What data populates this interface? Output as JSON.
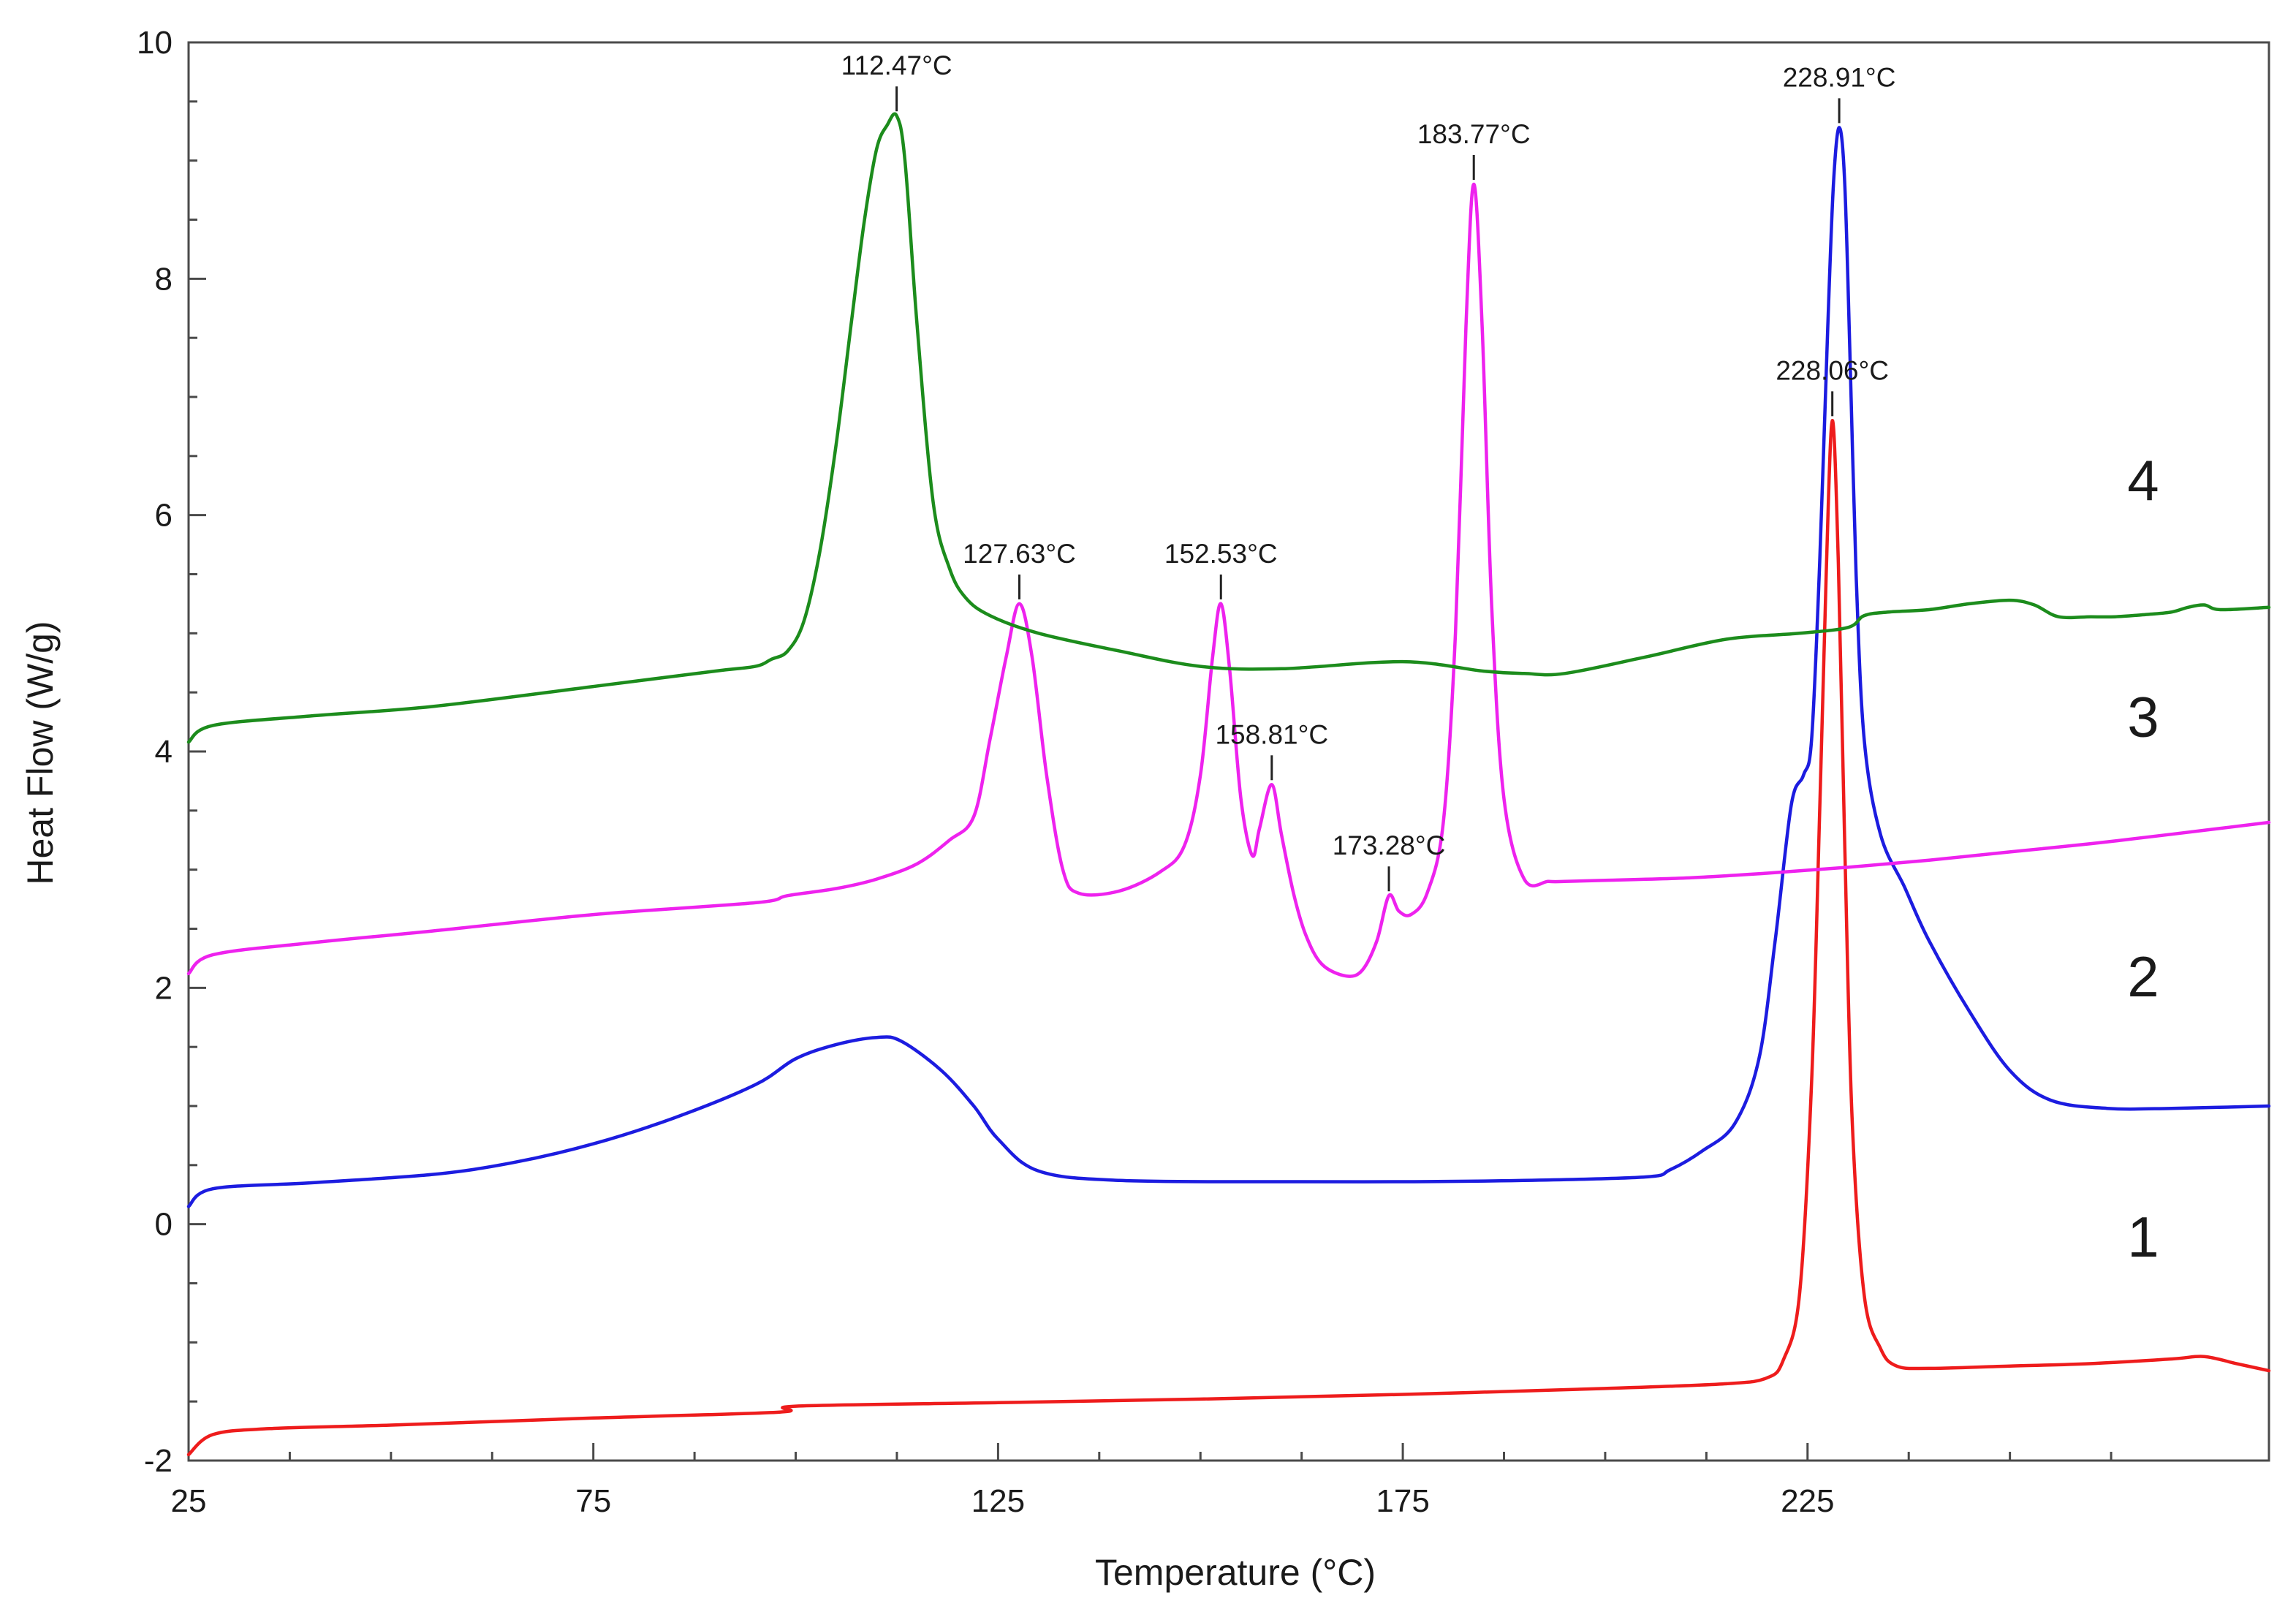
{
  "chart_data": {
    "type": "line",
    "title": "",
    "xlabel": "Temperature (°C)",
    "ylabel": "Heat Flow (W/g)",
    "xlim": [
      25,
      282
    ],
    "ylim": [
      -2,
      10
    ],
    "xticks": [
      25,
      75,
      125,
      175,
      225
    ],
    "yticks": [
      -2,
      0,
      2,
      4,
      6,
      8,
      10
    ],
    "grid": false,
    "series": [
      {
        "name": "1",
        "color": "#ee1c1c",
        "x": [
          25,
          28,
          35,
          50,
          75,
          98,
          100,
          125,
          150,
          175,
          200,
          215,
          220,
          222,
          224,
          225.5,
          226.5,
          227.3,
          228.06,
          228.8,
          229.6,
          230.5,
          232,
          234,
          236,
          240,
          250,
          260,
          270,
          274,
          278,
          282
        ],
        "y": [
          -1.95,
          -1.78,
          -1.73,
          -1.7,
          -1.64,
          -1.59,
          -1.54,
          -1.51,
          -1.48,
          -1.44,
          -1.39,
          -1.35,
          -1.3,
          -1.15,
          -0.6,
          1.2,
          3.5,
          5.5,
          6.8,
          5.6,
          3.2,
          0.9,
          -0.6,
          -1.05,
          -1.2,
          -1.22,
          -1.2,
          -1.18,
          -1.14,
          -1.12,
          -1.18,
          -1.24
        ]
      },
      {
        "name": "2",
        "color": "#1c1ce0",
        "x": [
          25,
          28,
          40,
          55,
          65,
          75,
          85,
          95,
          100,
          105,
          110,
          113,
          118,
          122,
          125,
          130,
          140,
          160,
          175,
          190,
          205,
          208,
          212,
          216,
          219,
          221,
          223,
          224.5,
          225.5,
          226.5,
          227.5,
          228.2,
          228.91,
          229.6,
          230.3,
          231,
          232,
          234,
          237,
          240,
          245,
          250,
          255,
          262,
          270,
          282
        ],
        "y": [
          0.15,
          0.3,
          0.35,
          0.42,
          0.52,
          0.68,
          0.9,
          1.18,
          1.4,
          1.52,
          1.58,
          1.55,
          1.3,
          1.0,
          0.72,
          0.45,
          0.37,
          0.36,
          0.36,
          0.37,
          0.4,
          0.46,
          0.62,
          0.85,
          1.4,
          2.4,
          3.55,
          3.8,
          4.1,
          5.6,
          7.6,
          8.8,
          9.28,
          8.8,
          7.2,
          5.5,
          4.1,
          3.3,
          2.85,
          2.4,
          1.8,
          1.3,
          1.05,
          0.98,
          0.98,
          1.0
        ]
      },
      {
        "name": "3",
        "color": "#ee22ee",
        "x": [
          25,
          28,
          40,
          55,
          75,
          95,
          99,
          105,
          110,
          115,
          119,
          122,
          124,
          126,
          127.63,
          129.2,
          131,
          133,
          135,
          140,
          145,
          148,
          150,
          151.5,
          152.53,
          153.6,
          155,
          156.4,
          157.3,
          158.81,
          160,
          161.5,
          163,
          165,
          168,
          170,
          171.8,
          173.28,
          174.5,
          176,
          178,
          180,
          181.5,
          182.8,
          183.77,
          184.8,
          186,
          187.5,
          190,
          193,
          195,
          200,
          210,
          220,
          230,
          240,
          250,
          260,
          270,
          282
        ],
        "y": [
          2.12,
          2.28,
          2.38,
          2.48,
          2.62,
          2.72,
          2.78,
          2.84,
          2.92,
          3.05,
          3.25,
          3.45,
          4.1,
          4.8,
          5.25,
          4.8,
          3.8,
          3.0,
          2.8,
          2.82,
          2.98,
          3.2,
          3.8,
          4.8,
          5.25,
          4.7,
          3.6,
          3.12,
          3.35,
          3.72,
          3.3,
          2.8,
          2.45,
          2.2,
          2.1,
          2.15,
          2.4,
          2.78,
          2.65,
          2.62,
          2.8,
          3.4,
          5.0,
          7.6,
          8.8,
          7.6,
          5.2,
          3.6,
          2.92,
          2.9,
          2.9,
          2.91,
          2.93,
          2.97,
          3.02,
          3.08,
          3.15,
          3.22,
          3.3,
          3.4
        ]
      },
      {
        "name": "4",
        "color": "#1c8c1c",
        "x": [
          25,
          28,
          40,
          55,
          75,
          90,
          95,
          97,
          99,
          101,
          103,
          105,
          107,
          108.5,
          110,
          111.3,
          112.47,
          113.5,
          115,
          117,
          119,
          121,
          124,
          130,
          140,
          150,
          160,
          175,
          185,
          190,
          195,
          205,
          215,
          224,
          230,
          232,
          235,
          240,
          245,
          250,
          253,
          256,
          260,
          263,
          267,
          270,
          272,
          274,
          276,
          282
        ],
        "y": [
          4.08,
          4.22,
          4.3,
          4.38,
          4.55,
          4.68,
          4.72,
          4.78,
          4.85,
          5.1,
          5.7,
          6.6,
          7.7,
          8.5,
          9.1,
          9.3,
          9.38,
          9.0,
          7.6,
          6.1,
          5.55,
          5.3,
          5.15,
          5.0,
          4.85,
          4.72,
          4.7,
          4.76,
          4.68,
          4.66,
          4.66,
          4.8,
          4.95,
          5.0,
          5.05,
          5.15,
          5.18,
          5.2,
          5.25,
          5.28,
          5.24,
          5.14,
          5.14,
          5.14,
          5.16,
          5.18,
          5.22,
          5.24,
          5.2,
          5.22
        ]
      }
    ],
    "peak_annotations": [
      {
        "label": "112.47°C",
        "x": 112.47,
        "y": 9.38
      },
      {
        "label": "127.63°C",
        "x": 127.63,
        "y": 5.25
      },
      {
        "label": "152.53°C",
        "x": 152.53,
        "y": 5.25
      },
      {
        "label": "158.81°C",
        "x": 158.81,
        "y": 3.72
      },
      {
        "label": "173.28°C",
        "x": 173.28,
        "y": 2.78
      },
      {
        "label": "183.77°C",
        "x": 183.77,
        "y": 8.8
      },
      {
        "label": "228.91°C",
        "x": 228.91,
        "y": 9.28
      },
      {
        "label": "228.06°C",
        "x": 228.06,
        "y": 6.8
      }
    ],
    "curve_labels": [
      {
        "label": "4",
        "y": 6.3
      },
      {
        "label": "3",
        "y": 4.3
      },
      {
        "label": "2",
        "y": 2.1
      },
      {
        "label": "1",
        "y": -0.1
      }
    ]
  }
}
